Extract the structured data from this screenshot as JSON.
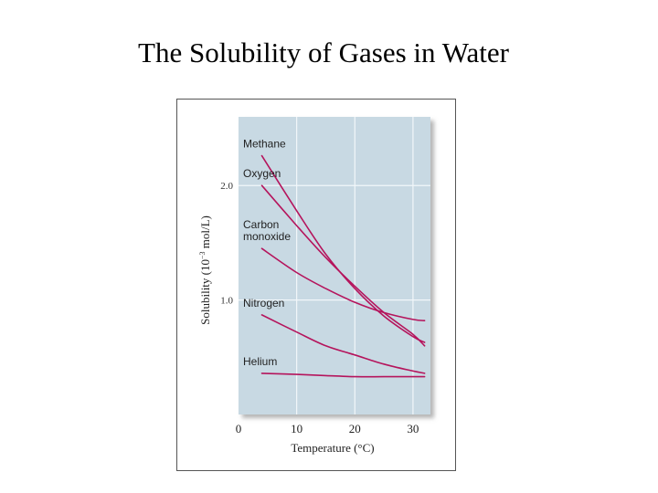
{
  "slide": {
    "title": "The Solubility of Gases in Water"
  },
  "chart_data": {
    "type": "line",
    "title": "",
    "xlabel": "Temperature (°C)",
    "ylabel_parts": {
      "before": "Solubility (10",
      "sup": "−3",
      "after": " mol/L)"
    },
    "xlim": [
      0,
      33
    ],
    "ylim": [
      0,
      2.6
    ],
    "xticks": [
      "0",
      "10",
      "20",
      "30"
    ],
    "xtick_values": [
      0,
      10,
      20,
      30
    ],
    "yticks": [
      "1.0",
      "2.0"
    ],
    "ytick_values": [
      1.0,
      2.0
    ],
    "grid": true,
    "line_color": "#b5145c",
    "plot_background": "#c8d9e3",
    "series": [
      {
        "name": "Methane",
        "x": [
          4,
          10,
          15,
          20,
          25,
          30,
          32
        ],
        "y": [
          2.26,
          1.78,
          1.4,
          1.1,
          0.86,
          0.68,
          0.63
        ]
      },
      {
        "name": "Oxygen",
        "x": [
          4,
          10,
          15,
          20,
          25,
          30,
          32
        ],
        "y": [
          2.0,
          1.65,
          1.37,
          1.12,
          0.89,
          0.7,
          0.6
        ]
      },
      {
        "name": "Carbon monoxide",
        "x": [
          4,
          10,
          15,
          20,
          25,
          30,
          32
        ],
        "y": [
          1.45,
          1.24,
          1.1,
          0.98,
          0.89,
          0.83,
          0.82
        ]
      },
      {
        "name": "Nitrogen",
        "x": [
          4,
          10,
          15,
          20,
          25,
          30,
          32
        ],
        "y": [
          0.87,
          0.72,
          0.6,
          0.52,
          0.44,
          0.38,
          0.36
        ]
      },
      {
        "name": "Helium",
        "x": [
          4,
          10,
          15,
          20,
          25,
          30,
          32
        ],
        "y": [
          0.36,
          0.35,
          0.34,
          0.33,
          0.33,
          0.33,
          0.33
        ]
      }
    ],
    "annotations": [
      {
        "series": "Methane",
        "lines": [
          "Methane"
        ]
      },
      {
        "series": "Oxygen",
        "lines": [
          "Oxygen"
        ]
      },
      {
        "series": "Carbon monoxide",
        "lines": [
          "Carbon",
          "monoxide"
        ]
      },
      {
        "series": "Nitrogen",
        "lines": [
          "Nitrogen"
        ]
      },
      {
        "series": "Helium",
        "lines": [
          "Helium"
        ]
      }
    ]
  }
}
